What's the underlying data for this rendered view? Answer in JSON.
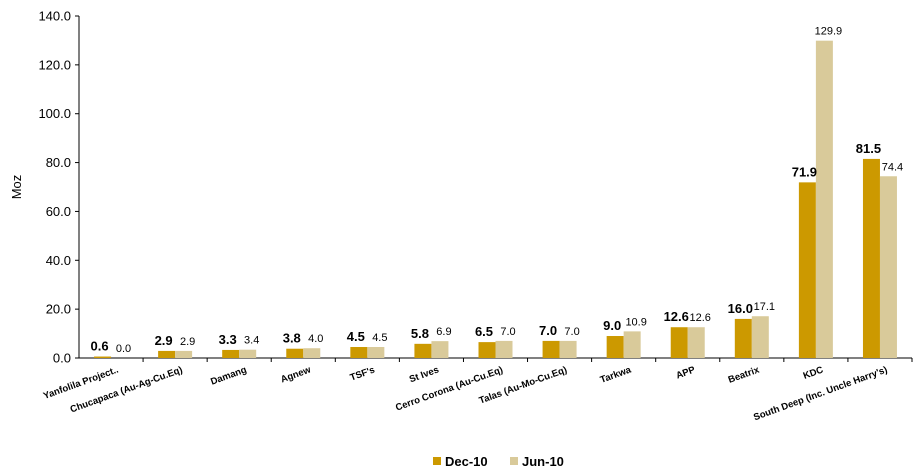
{
  "chart_data": {
    "type": "bar",
    "ylabel": "Moz",
    "ylim": [
      0,
      140
    ],
    "yticks": [
      "0.0",
      "20.0",
      "40.0",
      "60.0",
      "80.0",
      "100.0",
      "120.0",
      "140.0"
    ],
    "grid": false,
    "legend_position": "bottom-center",
    "categories": [
      "Yanfolila Project..",
      "Chucapaca (Au-Ag-Cu.Eq)",
      "Damang",
      "Agnew",
      "TSF's",
      "St Ives",
      "Cerro Corona (Au-Cu.Eq)",
      "Talas (Au-Mo-Cu.Eq)",
      "Tarkwa",
      "APP",
      "Beatrix",
      "KDC",
      "South Deep (Inc. Uncle Harry's)"
    ],
    "series": [
      {
        "name": "Dec-10",
        "color": "#CC9900",
        "values": [
          0.6,
          2.9,
          3.3,
          3.8,
          4.5,
          5.8,
          6.5,
          7.0,
          9.0,
          12.6,
          16.0,
          71.9,
          81.5
        ],
        "labels": [
          "0.6",
          "2.9",
          "3.3",
          "3.8",
          "4.5",
          "5.8",
          "6.5",
          "7.0",
          "9.0",
          "12.6",
          "16.0",
          "71.9",
          "81.5"
        ]
      },
      {
        "name": "Jun-10",
        "color": "#D9CA9A",
        "values": [
          0.0,
          2.9,
          3.4,
          4.0,
          4.5,
          6.9,
          7.0,
          7.0,
          10.9,
          12.6,
          17.1,
          129.9,
          74.4
        ],
        "labels": [
          "0.0",
          "2.9",
          "3.4",
          "4.0",
          "4.5",
          "6.9",
          "7.0",
          "7.0",
          "10.9",
          "12.6",
          "17.1",
          "129.9",
          "74.4"
        ]
      }
    ]
  }
}
